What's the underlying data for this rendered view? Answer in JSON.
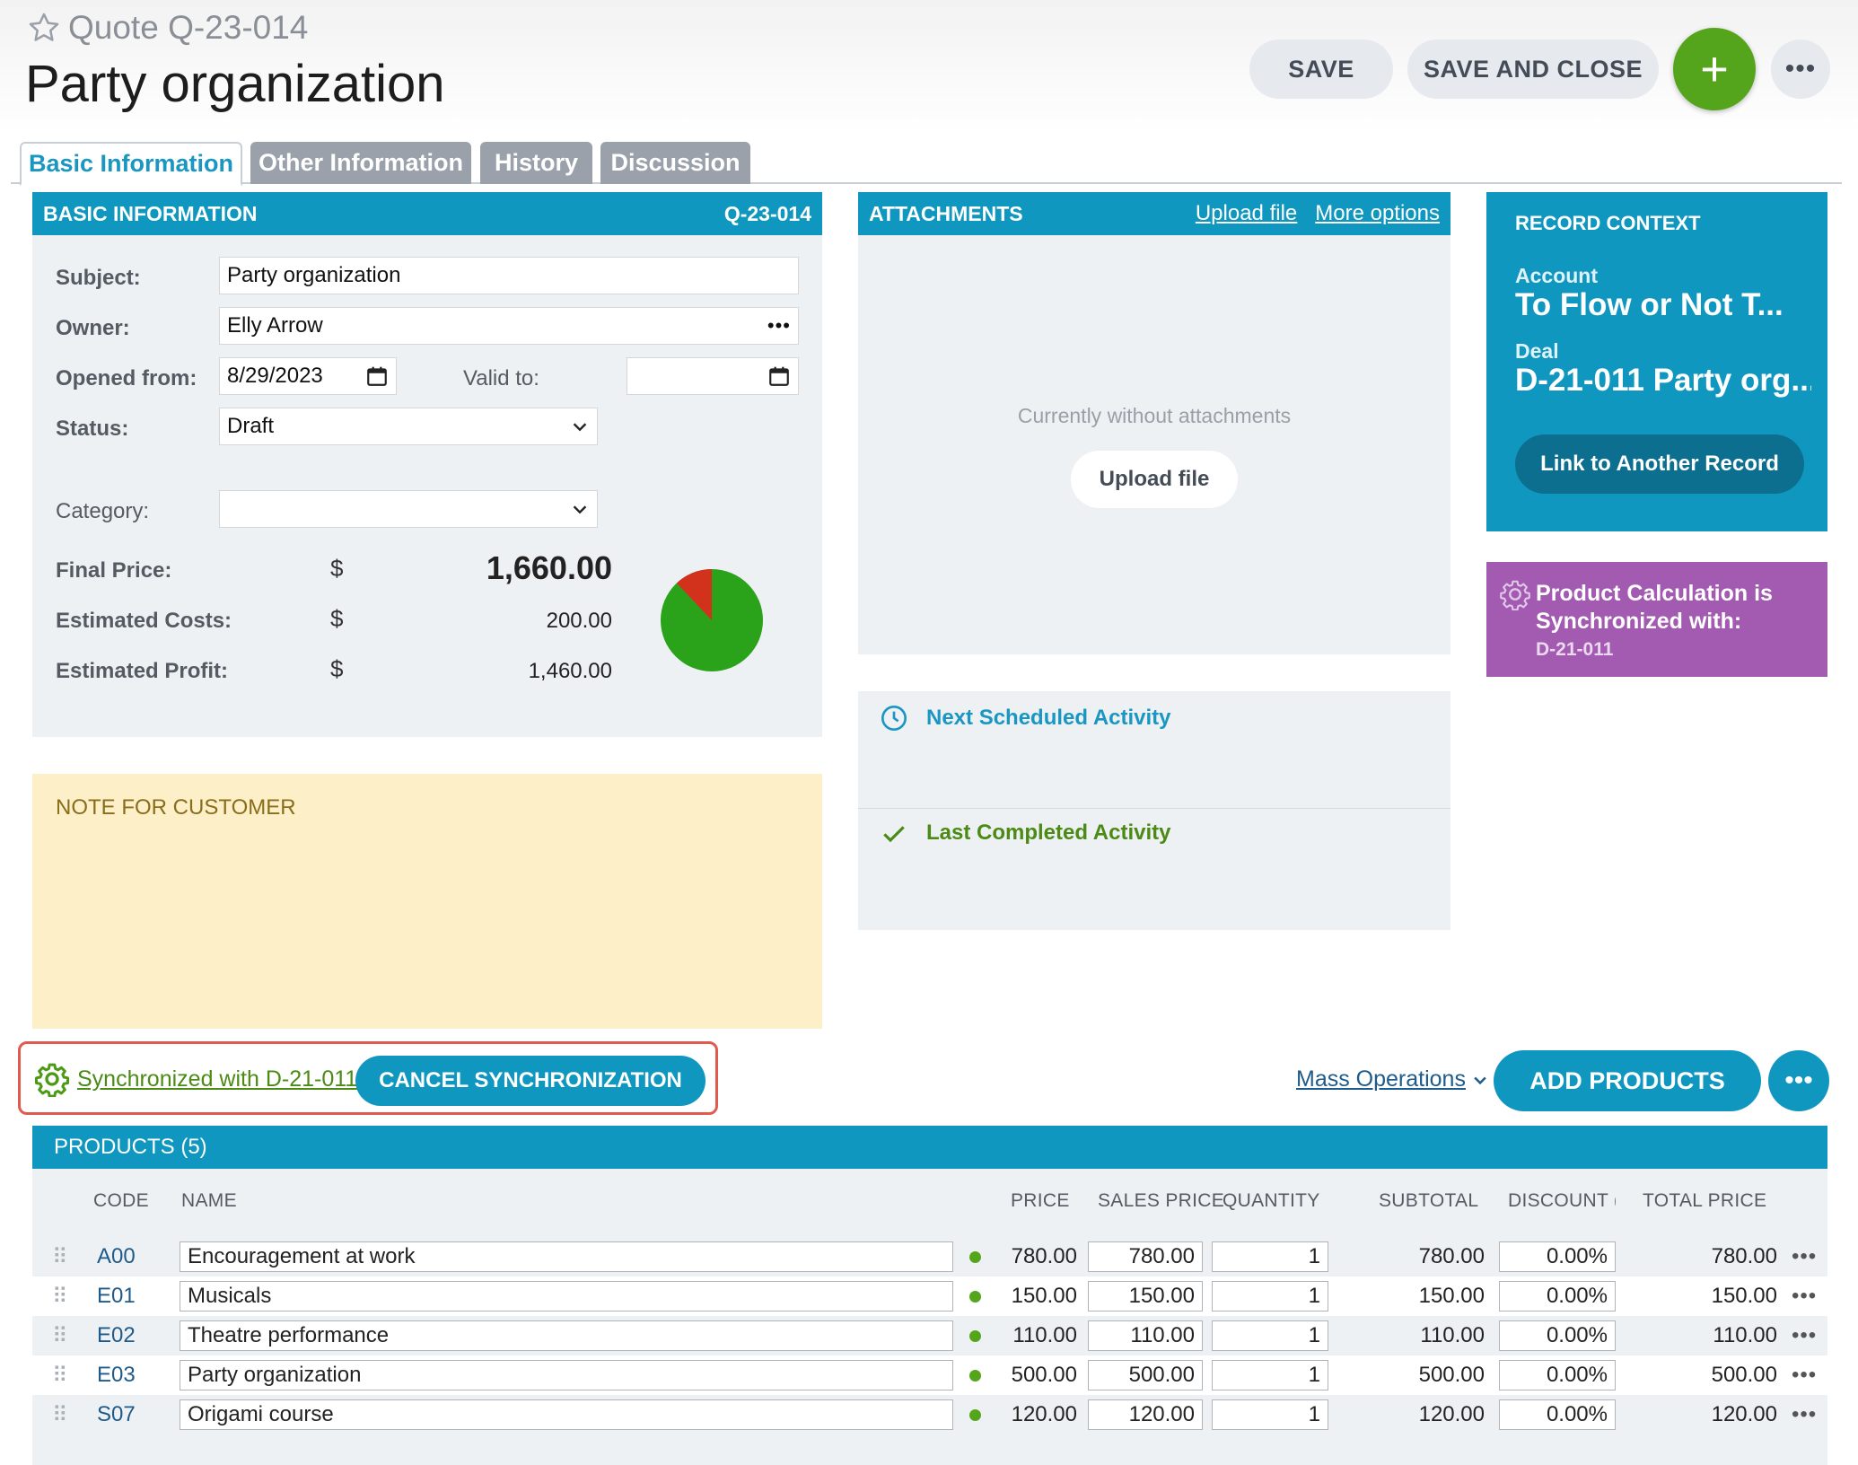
{
  "header": {
    "record_label": "Quote Q-23-014",
    "title": "Party organization",
    "save_label": "SAVE",
    "save_close_label": "SAVE AND CLOSE",
    "add_label": "+",
    "more_label": "•••"
  },
  "tabs": [
    {
      "label": "Basic Information",
      "active": true
    },
    {
      "label": "Other Information",
      "active": false
    },
    {
      "label": "History",
      "active": false
    },
    {
      "label": "Discussion",
      "active": false
    }
  ],
  "basic_info": {
    "title": "BASIC INFORMATION",
    "code": "Q-23-014",
    "subject_label": "Subject:",
    "subject_value": "Party organization",
    "owner_label": "Owner:",
    "owner_value": "Elly Arrow",
    "owner_more": "•••",
    "opened_label": "Opened from:",
    "opened_value": "8/29/2023",
    "valid_label": "Valid to:",
    "valid_value": "",
    "status_label": "Status:",
    "status_value": "Draft",
    "category_label": "Category:",
    "category_value": "",
    "final_price_label": "Final Price:",
    "final_price_value": "1,660.00",
    "est_costs_label": "Estimated Costs:",
    "est_costs_value": "200.00",
    "est_profit_label": "Estimated Profit:",
    "est_profit_value": "1,460.00",
    "currency": "$",
    "pie": {
      "costs": 200,
      "profit": 1460,
      "costs_color": "#d2321c",
      "profit_color": "#2aa21a"
    }
  },
  "note": {
    "title": "NOTE FOR CUSTOMER"
  },
  "attachments": {
    "title": "ATTACHMENTS",
    "upload_link": "Upload file",
    "more_link": "More options",
    "empty_text": "Currently without attachments",
    "upload_button": "Upload file"
  },
  "activities": {
    "next_label": "Next Scheduled Activity",
    "last_label": "Last Completed Activity"
  },
  "record_context": {
    "title": "RECORD CONTEXT",
    "account_label": "Account",
    "account_value": "To Flow or Not T...",
    "deal_label": "Deal",
    "deal_value": "D-21-011 Party org...",
    "link_button": "Link to Another Record"
  },
  "sync_card": {
    "text": "Product Calculation is Synchronized with:",
    "ref": "D-21-011"
  },
  "sync_bar": {
    "link": "Synchronized with D-21-011",
    "cancel_button": "CANCEL SYNCHRONIZATION",
    "mass_operations": "Mass Operations",
    "add_products": "ADD PRODUCTS",
    "more": "•••"
  },
  "products": {
    "title": "PRODUCTS (5)",
    "columns": [
      "CODE",
      "NAME",
      "PRICE",
      "SALES PRICE",
      "QUANTITY",
      "SUBTOTAL",
      "DISCOUNT (%",
      "TOTAL PRICE"
    ],
    "rows": [
      {
        "code": "A00",
        "name": "Encouragement at work",
        "price": "780.00",
        "sales_price": "780.00",
        "quantity": "1",
        "subtotal": "780.00",
        "discount": "0.00%",
        "total": "780.00"
      },
      {
        "code": "E01",
        "name": "Musicals",
        "price": "150.00",
        "sales_price": "150.00",
        "quantity": "1",
        "subtotal": "150.00",
        "discount": "0.00%",
        "total": "150.00"
      },
      {
        "code": "E02",
        "name": "Theatre performance",
        "price": "110.00",
        "sales_price": "110.00",
        "quantity": "1",
        "subtotal": "110.00",
        "discount": "0.00%",
        "total": "110.00"
      },
      {
        "code": "E03",
        "name": "Party organization",
        "price": "500.00",
        "sales_price": "500.00",
        "quantity": "1",
        "subtotal": "500.00",
        "discount": "0.00%",
        "total": "500.00"
      },
      {
        "code": "S07",
        "name": "Origami course",
        "price": "120.00",
        "sales_price": "120.00",
        "quantity": "1",
        "subtotal": "120.00",
        "discount": "0.00%",
        "total": "120.00"
      }
    ],
    "row_more": "•••",
    "drag_glyph": "⠿"
  },
  "colors": {
    "accent": "#1097c0",
    "green": "#55a51c",
    "purple": "#a25bb1",
    "note": "#fdf0c8"
  }
}
